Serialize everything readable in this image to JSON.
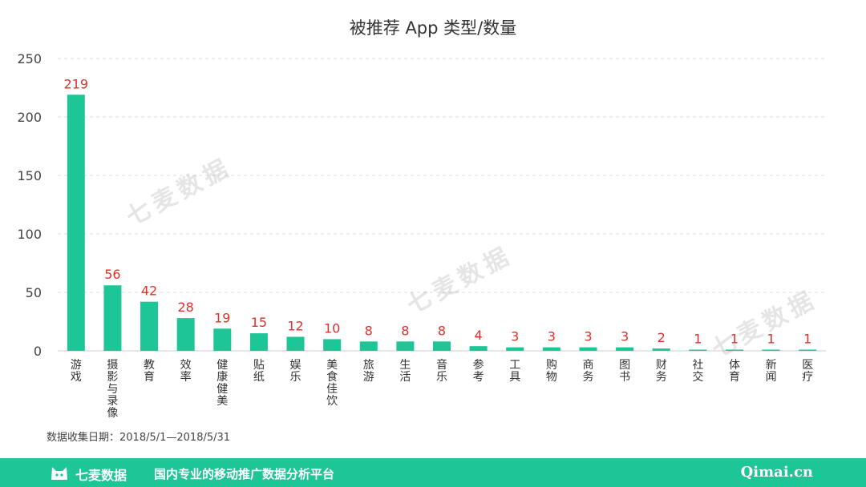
{
  "chart_data": {
    "type": "bar",
    "title": "被推荐 App 类型/数量",
    "categories": [
      "游戏",
      "摄影与录像",
      "教育",
      "效率",
      "健康健美",
      "贴纸",
      "娱乐",
      "美食佳饮",
      "旅游",
      "生活",
      "音乐",
      "参考",
      "工具",
      "购物",
      "商务",
      "图书",
      "财务",
      "社交",
      "体育",
      "新闻",
      "医疗"
    ],
    "values": [
      219,
      56,
      42,
      28,
      19,
      15,
      12,
      10,
      8,
      8,
      8,
      4,
      3,
      3,
      3,
      3,
      2,
      1,
      1,
      1,
      1
    ],
    "yticks": [
      0,
      50,
      100,
      150,
      200,
      250
    ],
    "ylim": [
      0,
      250
    ],
    "bar_color": "#1ec596",
    "label_color": "#e0302c",
    "grid": true,
    "xlabel": "",
    "ylabel": ""
  },
  "note": "数据收集日期：2018/5/1—2018/5/31",
  "footer": {
    "brand": "七麦数据",
    "slogan": "国内专业的移动推广数据分析平台",
    "site": "Qimai.cn"
  },
  "watermark": "七麦数据"
}
